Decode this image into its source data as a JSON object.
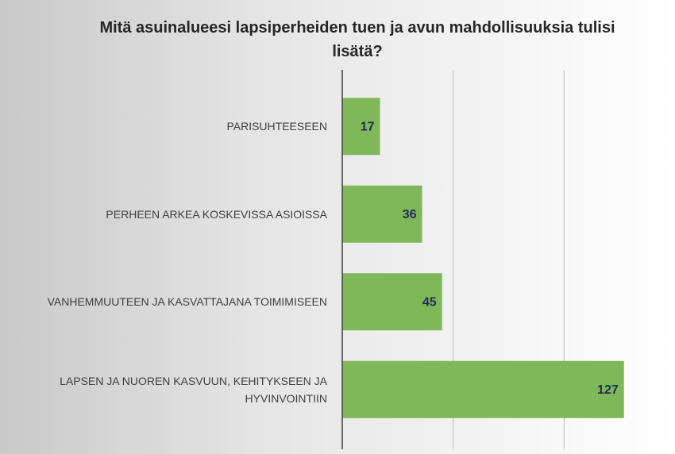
{
  "chart_data": {
    "type": "bar",
    "orientation": "horizontal",
    "title": "Mitä asuinalueesi lapsiperheiden tuen ja avun mahdollisuuksia tulisi lisätä?",
    "categories": [
      "PARISUHTEESEEN",
      "PERHEEN ARKEA KOSKEVISSA ASIOISSA",
      "VANHEMMUUTEEN JA KASVATTAJANA TOIMIMISEEN",
      "LAPSEN JA NUOREN KASVUUN, KEHITYKSEEN JA HYVINVOINTIIN"
    ],
    "values": [
      17,
      36,
      45,
      127
    ],
    "color": "#7fb859",
    "xlim": [
      0,
      150
    ],
    "xticks": [
      50,
      100
    ],
    "grid": true
  }
}
